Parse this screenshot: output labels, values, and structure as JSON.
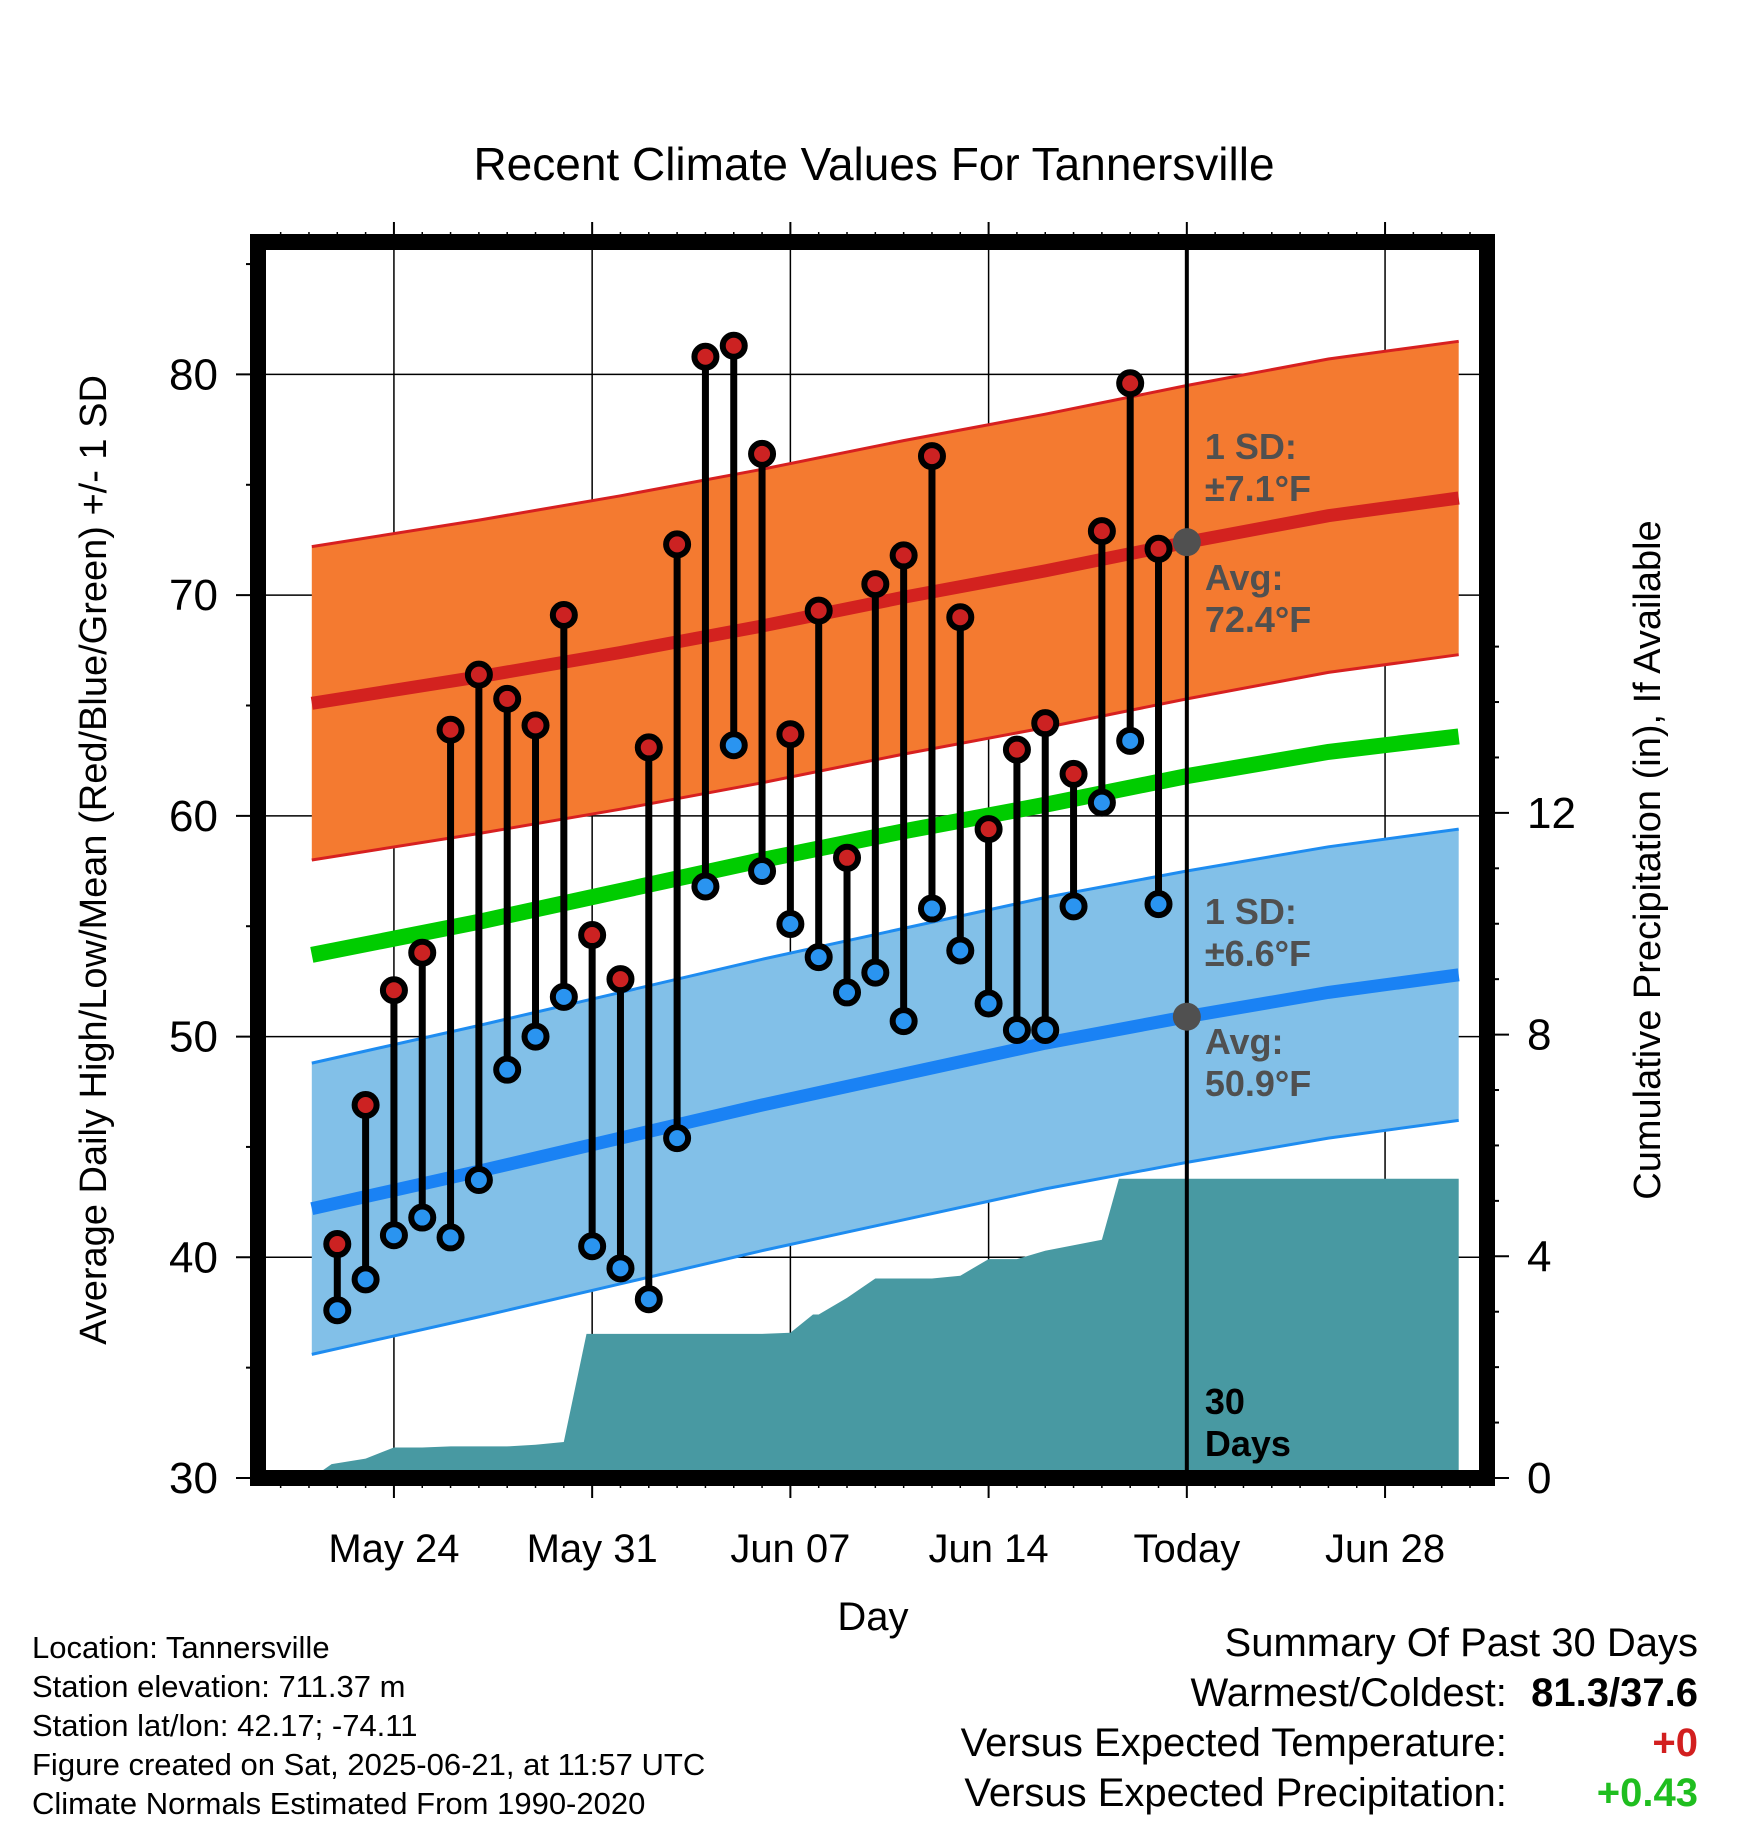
{
  "chart_data": {
    "type": "line",
    "title": "Recent Climate Values For Tannersville",
    "xlabel": "Day",
    "ylabel": "Average Daily High/Low/Mean (Red/Blue/Green) +/- 1 SD",
    "ylabel_right": "Cumulative Precipitation (in), If Available",
    "ylim": [
      30,
      86
    ],
    "ylim_right": [
      0,
      22.3
    ],
    "yticks": [
      30,
      40,
      50,
      60,
      70,
      80
    ],
    "yticks_right": [
      0,
      4,
      8,
      12
    ],
    "x_days_range": [
      -32.8,
      10.6
    ],
    "xtick_days": [
      -28,
      -21,
      -14,
      -7,
      0,
      7
    ],
    "xtick_labels": [
      "May 24",
      "May 31",
      "Jun 07",
      "Jun 14",
      "Today",
      "Jun 28"
    ],
    "grid": true,
    "today_marker_label": "30 Days",
    "observations": {
      "days": [
        -30,
        -29,
        -28,
        -27,
        -26,
        -25,
        -24,
        -23,
        -22,
        -21,
        -20,
        -19,
        -18,
        -17,
        -16,
        -15,
        -14,
        -13,
        -12,
        -11,
        -10,
        -9,
        -8,
        -7,
        -6,
        -5,
        -4,
        -3,
        -2,
        -1
      ],
      "highs": [
        40.6,
        46.9,
        52.1,
        53.8,
        63.9,
        66.4,
        65.3,
        64.1,
        69.1,
        54.6,
        52.6,
        63.1,
        72.3,
        80.8,
        81.3,
        76.4,
        63.7,
        69.3,
        58.1,
        70.5,
        71.8,
        76.3,
        69.0,
        59.4,
        63.0,
        64.2,
        61.9,
        72.9,
        79.6,
        72.1
      ],
      "lows": [
        37.6,
        39.0,
        41.0,
        41.8,
        40.9,
        43.5,
        48.5,
        50.0,
        51.8,
        40.5,
        39.5,
        38.1,
        45.4,
        56.8,
        63.2,
        57.5,
        55.1,
        53.6,
        52.0,
        52.9,
        50.7,
        55.8,
        53.9,
        51.5,
        50.3,
        50.3,
        55.9,
        60.6,
        63.4,
        56.0
      ]
    },
    "normals": {
      "x": [
        -30.9,
        -25,
        -20,
        -15,
        -10,
        -5,
        0,
        5,
        9.6
      ],
      "avg_high": [
        65.1,
        66.3,
        67.4,
        68.6,
        69.9,
        71.1,
        72.4,
        73.6,
        74.4
      ],
      "avg_low": [
        42.2,
        43.9,
        45.4,
        46.9,
        48.3,
        49.7,
        50.9,
        52.0,
        52.8
      ],
      "avg_mean": [
        53.7,
        55.2,
        56.6,
        58.0,
        59.3,
        60.5,
        61.8,
        62.9,
        63.6
      ],
      "high_sd": 7.1,
      "low_sd": 6.6
    },
    "precipitation": {
      "x": [
        -30.9,
        -30.2,
        -29,
        -28,
        -27,
        -26,
        -25,
        -24,
        -23,
        -22,
        -21.2,
        -21,
        -20,
        -19,
        -18,
        -17,
        -16,
        -15,
        -14,
        -13.2,
        -13,
        -12,
        -11,
        -10,
        -9,
        -8,
        -7,
        -6,
        -5,
        -4,
        -3,
        -2.4,
        -2,
        -1,
        0,
        5,
        9.6
      ],
      "cumulative": [
        0,
        0.25,
        0.35,
        0.55,
        0.55,
        0.57,
        0.57,
        0.57,
        0.6,
        0.65,
        2.6,
        2.6,
        2.6,
        2.6,
        2.6,
        2.6,
        2.6,
        2.6,
        2.62,
        2.95,
        2.95,
        3.25,
        3.6,
        3.6,
        3.6,
        3.65,
        3.95,
        3.95,
        4.1,
        4.2,
        4.3,
        5.4,
        5.4,
        5.4,
        5.4,
        5.4,
        5.4
      ]
    },
    "annotations": {
      "high_sd_label": [
        "1 SD:",
        "±7.1°F"
      ],
      "high_avg_label": [
        "Avg:",
        "72.4°F"
      ],
      "low_sd_label": [
        "1 SD:",
        "±6.6°F"
      ],
      "low_avg_label": [
        "Avg:",
        "50.9°F"
      ]
    },
    "colors": {
      "high_band": "#f47a30",
      "high_band_edge": "#d72020",
      "avg_high_line": "#d3221f",
      "low_band": "#82c0e8",
      "low_band_edge": "#1e8cf0",
      "avg_low_line": "#1a82f4",
      "avg_mean_line": "#00cc00",
      "precip_fill": "#4899a2",
      "high_marker": "#cc2222",
      "low_marker": "#2a94f0",
      "annotation_text": "#505050"
    }
  },
  "footer": {
    "location": "Location: Tannersville",
    "elevation": "Station elevation: 711.37 m",
    "latlon": "Station lat/lon: 42.17; -74.11",
    "created": "Figure created on Sat, 2025-06-21, at 11:57 UTC",
    "normals": "Climate Normals Estimated From 1990-2020"
  },
  "summary": {
    "title": "Summary Of Past 30 Days",
    "warmest_label": "Warmest/Coldest:",
    "warmest_value": "81.3/37.6",
    "temp_label": "Versus Expected Temperature:",
    "temp_value": "+0",
    "precip_label": "Versus Expected Precipitation:",
    "precip_value": "+0.43"
  }
}
